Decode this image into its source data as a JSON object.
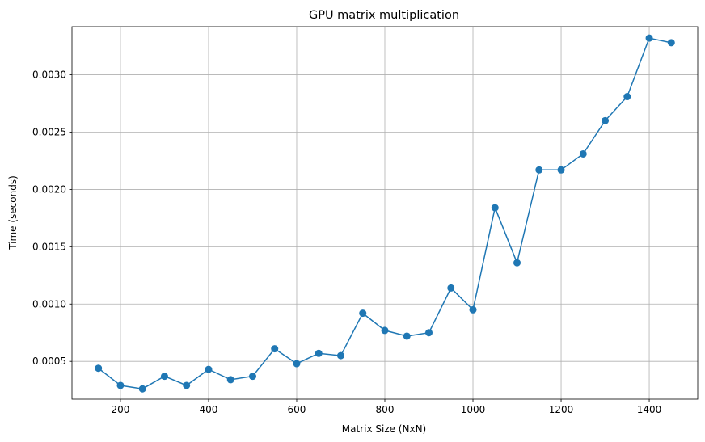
{
  "chart_data": {
    "type": "line",
    "title": "GPU matrix multiplication",
    "xlabel": "Matrix Size (NxN)",
    "ylabel": "Time (seconds)",
    "xlim": [
      90,
      1510
    ],
    "ylim": [
      0.00017,
      0.00342
    ],
    "xticks": [
      200,
      400,
      600,
      800,
      1000,
      1200,
      1400
    ],
    "xtick_labels": [
      "200",
      "400",
      "600",
      "800",
      "1000",
      "1200",
      "1400"
    ],
    "yticks": [
      0.0005,
      0.001,
      0.0015,
      0.002,
      0.0025,
      0.003
    ],
    "ytick_labels": [
      "0.0005",
      "0.0010",
      "0.0015",
      "0.0020",
      "0.0025",
      "0.0030"
    ],
    "grid": true,
    "marker": "circle",
    "series": [
      {
        "color": "#1f77b4",
        "x": [
          150,
          200,
          250,
          300,
          350,
          400,
          450,
          500,
          550,
          600,
          650,
          700,
          750,
          800,
          850,
          900,
          950,
          1000,
          1050,
          1100,
          1150,
          1200,
          1250,
          1300,
          1350,
          1400,
          1450
        ],
        "y": [
          0.00044,
          0.00029,
          0.00026,
          0.00037,
          0.00029,
          0.00043,
          0.00034,
          0.00037,
          0.00061,
          0.00048,
          0.00057,
          0.00055,
          0.00092,
          0.00077,
          0.00072,
          0.00075,
          0.00114,
          0.00095,
          0.00184,
          0.00136,
          0.00217,
          0.00217,
          0.00231,
          0.0026,
          0.00281,
          0.00332,
          0.00328
        ]
      }
    ]
  }
}
